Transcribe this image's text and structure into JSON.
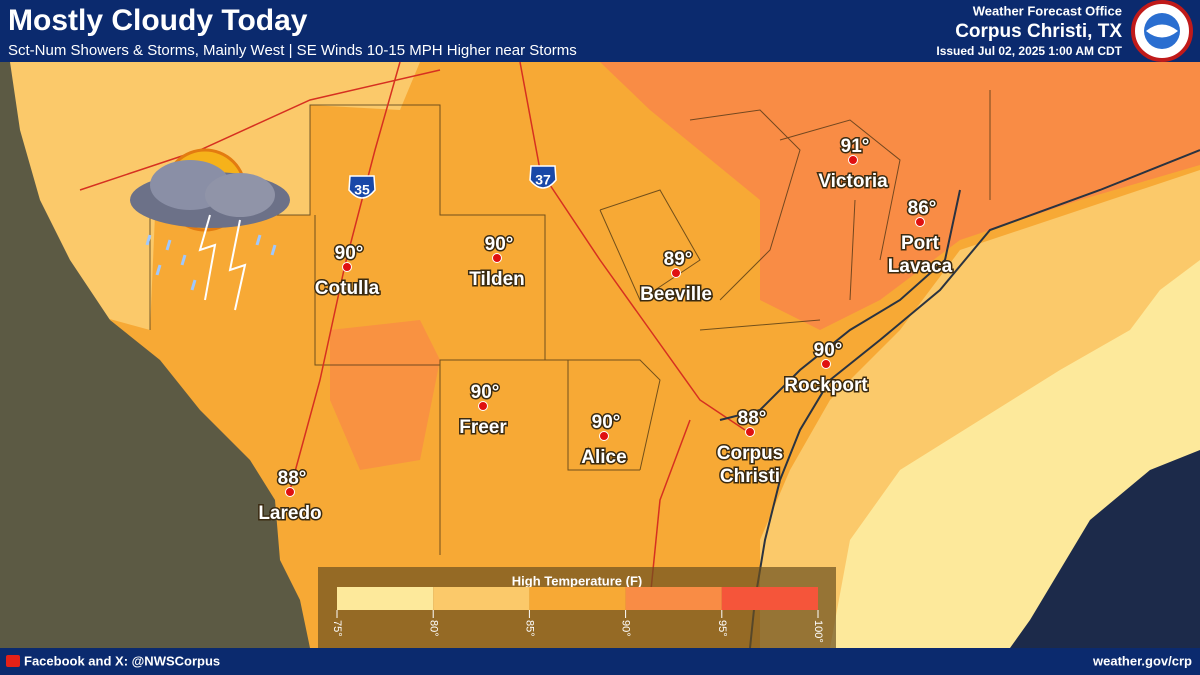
{
  "header": {
    "title": "Mostly Cloudy Today",
    "subtitle": "Sct-Num Showers & Storms, Mainly West | SE Winds 10-15 MPH Higher near Storms",
    "office": "Weather Forecast Office",
    "location": "Corpus Christi, TX",
    "issued": "Issued Jul 02, 2025 1:00 AM CDT"
  },
  "cities": [
    {
      "temp": "91°",
      "label_lines": [
        "Victoria"
      ]
    },
    {
      "temp": "86°",
      "label_lines": [
        "Port",
        "Lavaca"
      ]
    },
    {
      "temp": "89°",
      "label_lines": [
        "Beeville"
      ]
    },
    {
      "temp": "90°",
      "label_lines": [
        "Tilden"
      ]
    },
    {
      "temp": "90°",
      "label_lines": [
        "Cotulla"
      ]
    },
    {
      "temp": "90°",
      "label_lines": [
        "Rockport"
      ]
    },
    {
      "temp": "88°",
      "label_lines": [
        "Corpus",
        "Christi"
      ]
    },
    {
      "temp": "90°",
      "label_lines": [
        "Freer"
      ]
    },
    {
      "temp": "90°",
      "label_lines": [
        "Alice"
      ]
    },
    {
      "temp": "88°",
      "label_lines": [
        "Laredo"
      ]
    }
  ],
  "interstates": [
    "35",
    "37"
  ],
  "legend": {
    "title": "High Temperature (F)",
    "colors": [
      "#fde99b",
      "#fbc96a",
      "#f7a935",
      "#f98c45",
      "#f5553a"
    ],
    "ticks": [
      "75°",
      "80°",
      "85°",
      "90°",
      "95°",
      "100°"
    ]
  },
  "footer": {
    "social": "Facebook and X: @NWSCorpus",
    "url": "weather.gov/crp"
  }
}
